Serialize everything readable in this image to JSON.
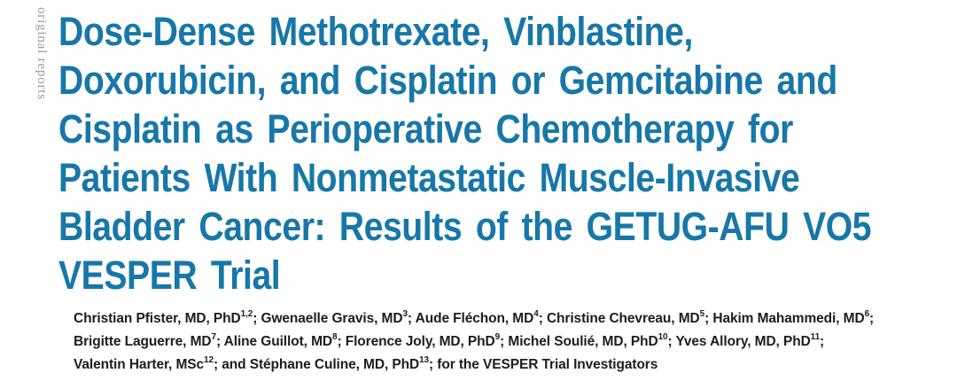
{
  "journal": {
    "section_label": "original reports"
  },
  "article": {
    "title_lines": [
      "Dose-Dense Methotrexate, Vinblastine,",
      "Doxorubicin, and Cisplatin or Gemcitabine and",
      "Cisplatin as Perioperative Chemotherapy for",
      "Patients With Nonmetastatic Muscle-Invasive",
      "Bladder Cancer: Results of the GETUG-AFU VO5",
      "VESPER Trial"
    ],
    "author_lines": [
      [
        {
          "t": "Christian Pfister, MD, PhD",
          "s": "1,2"
        },
        {
          "t": "; Gwenaelle Gravis, MD",
          "s": "3"
        },
        {
          "t": "; Aude Fléchon, MD",
          "s": "4"
        },
        {
          "t": "; Christine Chevreau, MD",
          "s": "5"
        },
        {
          "t": "; Hakim Mahammedi, MD",
          "s": "6"
        },
        {
          "t": ";",
          "s": ""
        }
      ],
      [
        {
          "t": "Brigitte Laguerre, MD",
          "s": "7"
        },
        {
          "t": "; Aline Guillot, MD",
          "s": "8"
        },
        {
          "t": "; Florence Joly, MD, PhD",
          "s": "9"
        },
        {
          "t": "; Michel Soulié, MD, PhD",
          "s": "10"
        },
        {
          "t": "; Yves Allory, MD, PhD",
          "s": "11"
        },
        {
          "t": ";",
          "s": ""
        }
      ],
      [
        {
          "t": "Valentin Harter, MSc",
          "s": "12"
        },
        {
          "t": "; and Stéphane Culine, MD, PhD",
          "s": "13"
        },
        {
          "t": "; for the VESPER Trial Investigators",
          "s": ""
        }
      ]
    ]
  },
  "colors": {
    "title": "#1777a8",
    "section_label": "#9b9b9b",
    "author_text": "#1d1d1b",
    "background": "#ffffff"
  }
}
